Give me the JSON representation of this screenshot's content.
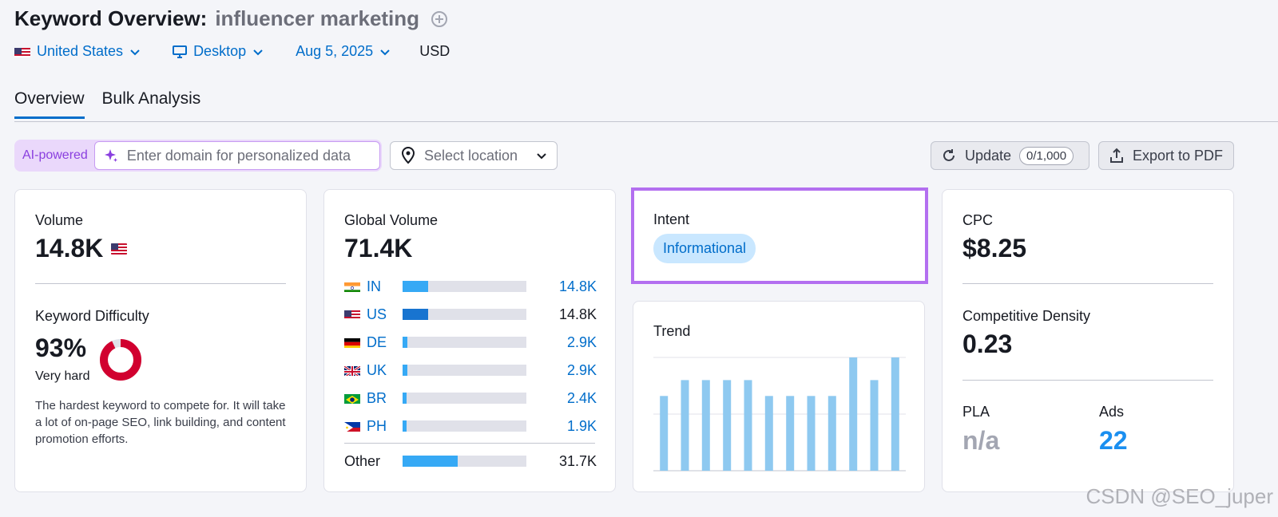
{
  "header": {
    "title": "Keyword Overview:",
    "keyword": "influencer marketing"
  },
  "filters": {
    "country": "United States",
    "device": "Desktop",
    "date": "Aug 5, 2025",
    "currency": "USD"
  },
  "tabs": [
    {
      "label": "Overview",
      "active": true
    },
    {
      "label": "Bulk Analysis",
      "active": false
    }
  ],
  "toolbar": {
    "ai_label": "AI-powered",
    "domain_placeholder": "Enter domain for personalized data",
    "location_placeholder": "Select location",
    "update_label": "Update",
    "update_counter": "0/1,000",
    "export_label": "Export to PDF"
  },
  "volume": {
    "label": "Volume",
    "value": "14.8K",
    "kd_label": "Keyword Difficulty",
    "kd_value": "93%",
    "kd_percent": 93,
    "kd_level": "Very hard",
    "kd_description": "The hardest keyword to compete for. It will take a lot of on-page SEO, link building, and content promotion efforts.",
    "kd_color": "#d1002f"
  },
  "global_volume": {
    "label": "Global Volume",
    "value": "71.4K",
    "countries": [
      {
        "code": "IN",
        "value": "14.8K",
        "share": 0.207
      },
      {
        "code": "US",
        "value": "14.8K",
        "share": 0.207
      },
      {
        "code": "DE",
        "value": "2.9K",
        "share": 0.041
      },
      {
        "code": "UK",
        "value": "2.9K",
        "share": 0.041
      },
      {
        "code": "BR",
        "value": "2.4K",
        "share": 0.034
      },
      {
        "code": "PH",
        "value": "1.9K",
        "share": 0.027
      }
    ],
    "other": {
      "label": "Other",
      "value": "31.7K",
      "share": 0.444
    }
  },
  "intent": {
    "label": "Intent",
    "value": "Informational"
  },
  "trend": {
    "label": "Trend",
    "chart_data": {
      "type": "bar",
      "values": [
        0.66,
        0.8,
        0.8,
        0.8,
        0.8,
        0.66,
        0.66,
        0.66,
        0.66,
        1.0,
        0.8,
        1.0
      ],
      "ylim": [
        0,
        1
      ]
    }
  },
  "cpc": {
    "label": "CPC",
    "value": "$8.25",
    "cd_label": "Competitive Density",
    "cd_value": "0.23",
    "pla_label": "PLA",
    "pla_value": "n/a",
    "ads_label": "Ads",
    "ads_value": "22"
  },
  "watermark": "CSDN @SEO_juper",
  "colors": {
    "accent": "#006dca",
    "ai_purple": "#8a3fdf",
    "bar_light": "#36a9f5",
    "bar_dark": "#1874d0",
    "trend_bar": "#8ec9f0"
  }
}
